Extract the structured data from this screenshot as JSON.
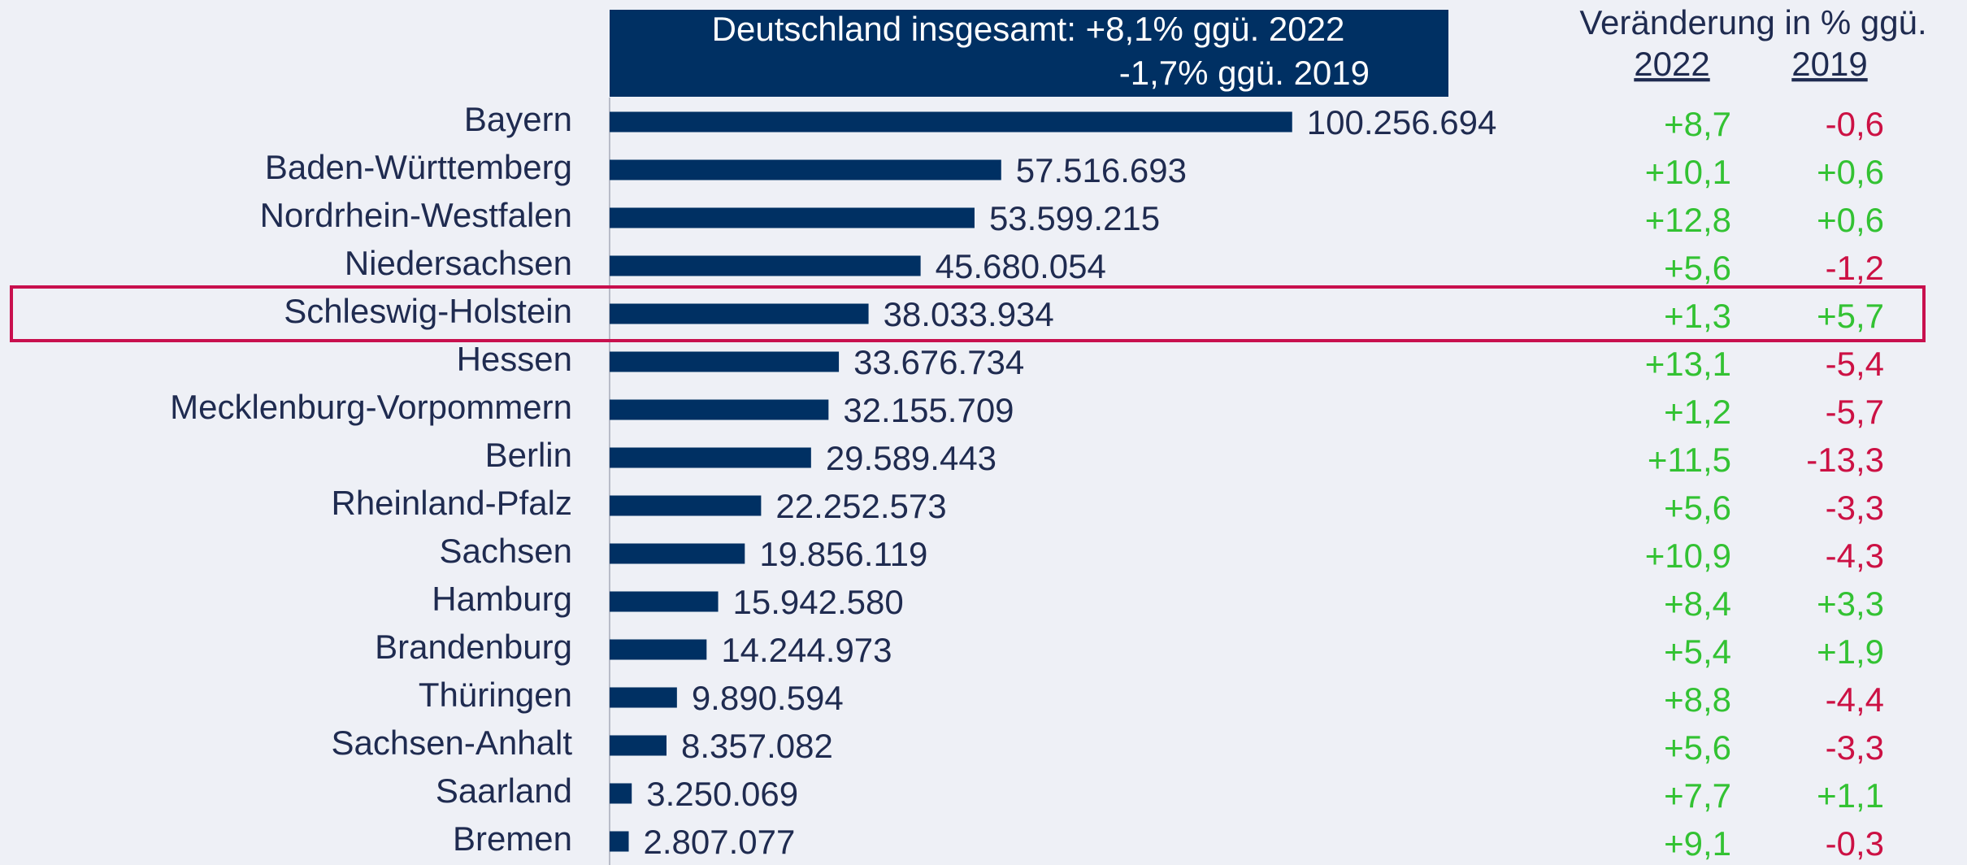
{
  "chart_data": {
    "type": "bar",
    "orientation": "horizontal",
    "annotations": [
      "Deutschland insgesamt: +8,1% ggü. 2022",
      "-1,7% ggü. 2019"
    ],
    "changes_title": "Veränderung in % ggü.",
    "categories": [
      "Bayern",
      "Baden-Württemberg",
      "Nordrhein-Westfalen",
      "Niedersachsen",
      "Schleswig-Holstein",
      "Hessen",
      "Mecklenburg-Vorpommern",
      "Berlin",
      "Rheinland-Pfalz",
      "Sachsen",
      "Hamburg",
      "Brandenburg",
      "Thüringen",
      "Sachsen-Anhalt",
      "Saarland",
      "Bremen"
    ],
    "values": [
      100256694,
      57516693,
      53599215,
      45680054,
      38033934,
      33676734,
      32155709,
      29589443,
      22252573,
      19856119,
      15942580,
      14244973,
      9890594,
      8357082,
      3250069,
      2807077
    ],
    "value_labels": [
      "100.256.694",
      "57.516.693",
      "53.599.215",
      "45.680.054",
      "38.033.934",
      "33.676.734",
      "32.155.709",
      "29.589.443",
      "22.252.573",
      "19.856.119",
      "15.942.580",
      "14.244.973",
      "9.890.594",
      "8.357.082",
      "3.250.069",
      "2.807.077"
    ],
    "color": "#003063",
    "xlim": [
      0,
      125000000
    ],
    "highlight": "Schleswig-Holstein",
    "highlight_color": "#c8104e",
    "positive_color": "#33c233",
    "negative_color": "#cc1144",
    "changes": [
      {
        "name": "2022",
        "values": [
          8.7,
          10.1,
          12.8,
          5.6,
          1.3,
          13.1,
          1.2,
          11.5,
          5.6,
          10.9,
          8.4,
          5.4,
          8.8,
          5.6,
          7.7,
          9.1
        ],
        "value_labels": [
          "+8,7",
          "+10,1",
          "+12,8",
          "+5,6",
          "+1,3",
          "+13,1",
          "+1,2",
          "+11,5",
          "+5,6",
          "+10,9",
          "+8,4",
          "+5,4",
          "+8,8",
          "+5,6",
          "+7,7",
          "+9,1"
        ]
      },
      {
        "name": "2019",
        "values": [
          -0.6,
          0.6,
          0.6,
          -1.2,
          5.7,
          -5.4,
          -5.7,
          -13.3,
          -3.3,
          -4.3,
          3.3,
          1.9,
          -4.4,
          -3.3,
          1.1,
          -0.3
        ],
        "value_labels": [
          "-0,6",
          "+0,6",
          "+0,6",
          "-1,2",
          "+5,7",
          "-5,4",
          "-5,7",
          "-13,3",
          "-3,3",
          "-4,3",
          "+3,3",
          "+1,9",
          "-4,4",
          "-3,3",
          "+1,1",
          "-0,3"
        ]
      }
    ]
  }
}
